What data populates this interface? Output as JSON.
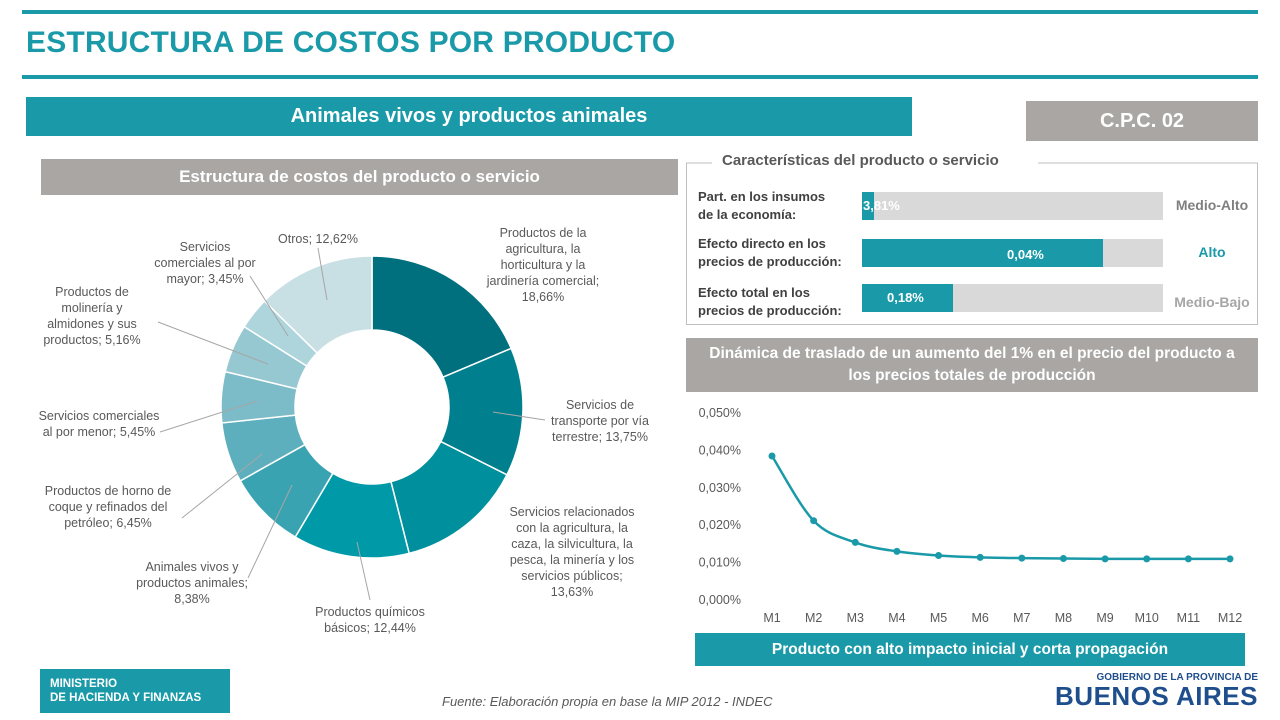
{
  "title": "ESTRUCTURA DE COSTOS POR PRODUCTO",
  "product_banner": "Animales vivos y productos animales",
  "cpc_code": "C.P.C. 02",
  "pie_section_title": "Estructura  de costos  del producto  o servicio",
  "characteristics": {
    "title": "Características del producto o servicio",
    "rows": [
      {
        "label_line1": "Part. en los insumos",
        "label_line2": "de la economía:",
        "value": "3,81%",
        "fill": 0.04,
        "level": "Medio-Alto",
        "level_color": "#7f7f7f"
      },
      {
        "label_line1": "Efecto directo en los",
        "label_line2": "precios de producción:",
        "value": "0,04%",
        "fill": 0.8,
        "level": "Alto",
        "level_color": "#1a9aa8"
      },
      {
        "label_line1": "Efecto total en los",
        "label_line2": "precios de producción:",
        "value": "0,18%",
        "fill": 0.3,
        "level": "Medio-Bajo",
        "level_color": "#a6a6a6"
      }
    ]
  },
  "dynamics_title_line1": "Dinámica de traslado de un aumento del 1% en el precio del producto a",
  "dynamics_title_line2": "los precios totales de producción",
  "impact_banner": "Producto con alto impacto inicial y corta propagación",
  "source": "Fuente: Elaboración propia en base la MIP 2012 - INDEC",
  "ministry_line1": "MINISTERIO",
  "ministry_line2": "DE HACIENDA Y FINANZAS",
  "gov_line1": "GOBIERNO DE LA PROVINCIA DE",
  "gov_line2": "BUENOS AIRES",
  "colors": {
    "accent": "#1a9aa8",
    "grey_banner": "#a9a6a4",
    "gov_blue": "#1f4e8c"
  },
  "chart_data": [
    {
      "type": "pie",
      "variant": "donut",
      "slices": [
        {
          "label": "Productos de la agricultura, la horticultura y la jardinería comercial; 18,66%",
          "value": 18.66,
          "color": "#00707e"
        },
        {
          "label": "Servicios de transporte por vía terrestre; 13,75%",
          "value": 13.75,
          "color": "#00808e"
        },
        {
          "label": "Servicios relacionados con la agricultura, la caza, la silvicultura, la pesca, la minería y los servicios públicos; 13,63%",
          "value": 13.63,
          "color": "#008f9c"
        },
        {
          "label": "Productos químicos básicos; 12,44%",
          "value": 12.44,
          "color": "#0099a8"
        },
        {
          "label": "Animales vivos y productos animales; 8,38%",
          "value": 8.38,
          "color": "#3aa3b2"
        },
        {
          "label": "Productos de horno de coque y refinados del petróleo; 6,45%",
          "value": 6.45,
          "color": "#5eafbd"
        },
        {
          "label": "Servicios comerciales al por menor; 5,45%",
          "value": 5.45,
          "color": "#7cbcc8"
        },
        {
          "label": "Productos de molinería y almidones y sus productos; 5,16%",
          "value": 5.16,
          "color": "#96c8d2"
        },
        {
          "label": "Servicios comerciales al por mayor; 3,45%",
          "value": 3.45,
          "color": "#afd5dc"
        },
        {
          "label": "Otros; 12,62%",
          "value": 12.62,
          "color": "#c8dfe4"
        }
      ]
    },
    {
      "type": "line",
      "x": [
        "M1",
        "M2",
        "M3",
        "M4",
        "M5",
        "M6",
        "M7",
        "M8",
        "M9",
        "M10",
        "M11",
        "M12"
      ],
      "series": [
        {
          "values": [
            0.0385,
            0.0212,
            0.0154,
            0.013,
            0.0119,
            0.0114,
            0.0112,
            0.0111,
            0.011,
            0.011,
            0.011,
            0.011
          ]
        }
      ],
      "yticks": [
        "0,000%",
        "0,010%",
        "0,020%",
        "0,030%",
        "0,040%",
        "0,050%"
      ],
      "ylim": [
        0,
        0.05
      ],
      "smooth": true,
      "color": "#1a9aa8"
    }
  ]
}
